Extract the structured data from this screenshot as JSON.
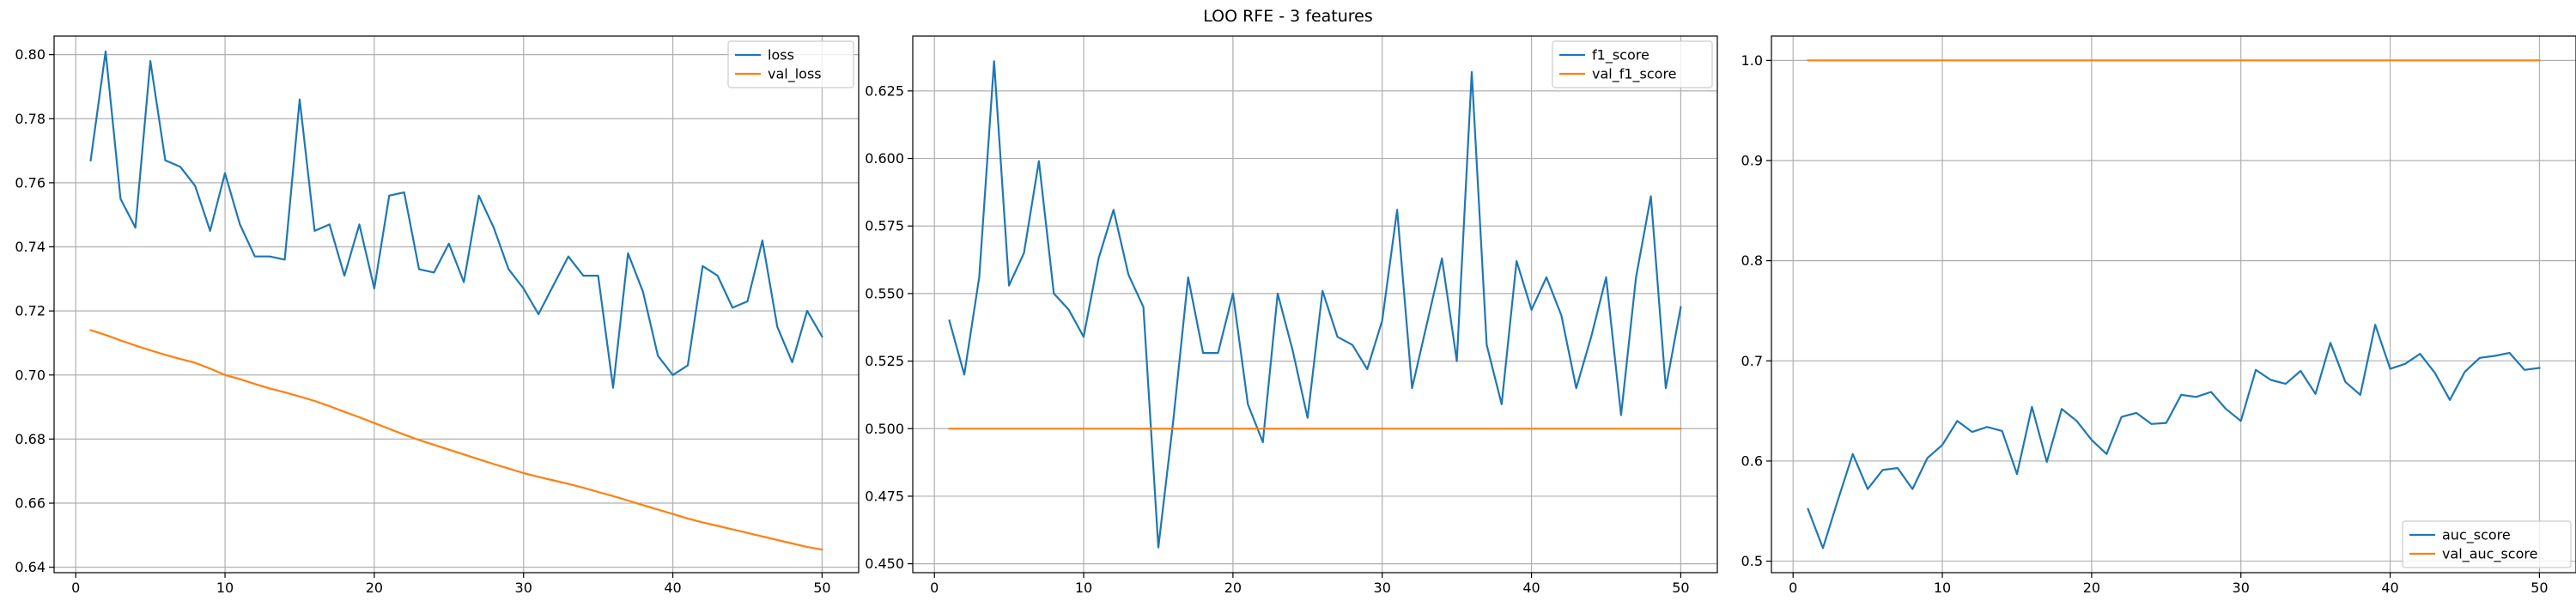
{
  "figure": {
    "title": "LOO RFE - 3 features"
  },
  "colors": {
    "series_1": "#1f77b4",
    "series_2": "#ff7f0e",
    "grid": "#b0b0b0"
  },
  "chart_data": [
    {
      "type": "line",
      "title": "",
      "xlabel": "",
      "ylabel": "",
      "xlim": [
        -1.45,
        52.45
      ],
      "ylim": [
        0.6383,
        0.8058
      ],
      "xticks": [
        0,
        10,
        20,
        30,
        40,
        50
      ],
      "yticks": [
        0.64,
        0.66,
        0.68,
        0.7,
        0.72,
        0.74,
        0.76,
        0.78,
        0.8
      ],
      "ytick_labels": [
        "0.64",
        "0.66",
        "0.68",
        "0.70",
        "0.72",
        "0.74",
        "0.76",
        "0.78",
        "0.80"
      ],
      "grid": true,
      "legend_position": "upper-right",
      "x": [
        1,
        2,
        3,
        4,
        5,
        6,
        7,
        8,
        9,
        10,
        11,
        12,
        13,
        14,
        15,
        16,
        17,
        18,
        19,
        20,
        21,
        22,
        23,
        24,
        25,
        26,
        27,
        28,
        29,
        30,
        31,
        32,
        33,
        34,
        35,
        36,
        37,
        38,
        39,
        40,
        41,
        42,
        43,
        44,
        45,
        46,
        47,
        48,
        49,
        50
      ],
      "series": [
        {
          "name": "loss",
          "values": [
            0.767,
            0.801,
            0.755,
            0.746,
            0.798,
            0.767,
            0.765,
            0.759,
            0.745,
            0.763,
            0.747,
            0.737,
            0.737,
            0.736,
            0.786,
            0.745,
            0.747,
            0.731,
            0.747,
            0.727,
            0.756,
            0.757,
            0.733,
            0.732,
            0.741,
            0.729,
            0.756,
            0.746,
            0.733,
            0.727,
            0.719,
            0.728,
            0.737,
            0.731,
            0.731,
            0.696,
            0.738,
            0.726,
            0.706,
            0.7,
            0.703,
            0.734,
            0.731,
            0.721,
            0.723,
            0.742,
            0.715,
            0.704,
            0.72,
            0.712
          ]
        },
        {
          "name": "val_loss",
          "values": [
            0.714,
            0.7125,
            0.7108,
            0.7092,
            0.7077,
            0.7063,
            0.705,
            0.7038,
            0.702,
            0.7,
            0.6987,
            0.6972,
            0.6958,
            0.6946,
            0.6933,
            0.6919,
            0.6903,
            0.6885,
            0.6868,
            0.685,
            0.6832,
            0.6814,
            0.6797,
            0.6782,
            0.6767,
            0.6752,
            0.6737,
            0.6722,
            0.6708,
            0.6694,
            0.6682,
            0.6671,
            0.666,
            0.6648,
            0.6635,
            0.6622,
            0.6608,
            0.6594,
            0.658,
            0.6566,
            0.6552,
            0.654,
            0.6529,
            0.6518,
            0.6507,
            0.6496,
            0.6485,
            0.6474,
            0.6463,
            0.6455
          ]
        }
      ]
    },
    {
      "type": "line",
      "title": "",
      "xlabel": "",
      "ylabel": "",
      "xlim": [
        -1.45,
        52.45
      ],
      "ylim": [
        0.4467,
        0.6453
      ],
      "xticks": [
        0,
        10,
        20,
        30,
        40,
        50
      ],
      "yticks": [
        0.45,
        0.475,
        0.5,
        0.525,
        0.55,
        0.575,
        0.6,
        0.625
      ],
      "ytick_labels": [
        "0.450",
        "0.475",
        "0.500",
        "0.525",
        "0.550",
        "0.575",
        "0.600",
        "0.625"
      ],
      "grid": true,
      "legend_position": "upper-right",
      "x": [
        1,
        2,
        3,
        4,
        5,
        6,
        7,
        8,
        9,
        10,
        11,
        12,
        13,
        14,
        15,
        16,
        17,
        18,
        19,
        20,
        21,
        22,
        23,
        24,
        25,
        26,
        27,
        28,
        29,
        30,
        31,
        32,
        33,
        34,
        35,
        36,
        37,
        38,
        39,
        40,
        41,
        42,
        43,
        44,
        45,
        46,
        47,
        48,
        49,
        50
      ],
      "series": [
        {
          "name": "f1_score",
          "values": [
            0.54,
            0.52,
            0.556,
            0.636,
            0.553,
            0.565,
            0.599,
            0.55,
            0.544,
            0.534,
            0.563,
            0.581,
            0.557,
            0.545,
            0.456,
            0.503,
            0.556,
            0.528,
            0.528,
            0.55,
            0.509,
            0.495,
            0.55,
            0.529,
            0.504,
            0.551,
            0.534,
            0.531,
            0.522,
            0.54,
            0.581,
            0.515,
            0.539,
            0.563,
            0.525,
            0.632,
            0.531,
            0.509,
            0.562,
            0.544,
            0.556,
            0.542,
            0.515,
            0.534,
            0.556,
            0.505,
            0.556,
            0.586,
            0.515,
            0.545
          ]
        },
        {
          "name": "val_f1_score",
          "values": [
            0.5,
            0.5,
            0.5,
            0.5,
            0.5,
            0.5,
            0.5,
            0.5,
            0.5,
            0.5,
            0.5,
            0.5,
            0.5,
            0.5,
            0.5,
            0.5,
            0.5,
            0.5,
            0.5,
            0.5,
            0.5,
            0.5,
            0.5,
            0.5,
            0.5,
            0.5,
            0.5,
            0.5,
            0.5,
            0.5,
            0.5,
            0.5,
            0.5,
            0.5,
            0.5,
            0.5,
            0.5,
            0.5,
            0.5,
            0.5,
            0.5,
            0.5,
            0.5,
            0.5,
            0.5,
            0.5,
            0.5,
            0.5,
            0.5,
            0.5
          ]
        }
      ]
    },
    {
      "type": "line",
      "title": "",
      "xlabel": "",
      "ylabel": "",
      "xlim": [
        -1.45,
        52.45
      ],
      "ylim": [
        0.4885,
        1.0243
      ],
      "xticks": [
        0,
        10,
        20,
        30,
        40,
        50
      ],
      "yticks": [
        0.5,
        0.6,
        0.7,
        0.8,
        0.9,
        1.0
      ],
      "ytick_labels": [
        "0.5",
        "0.6",
        "0.7",
        "0.8",
        "0.9",
        "1.0"
      ],
      "grid": true,
      "legend_position": "lower-right",
      "x": [
        1,
        2,
        3,
        4,
        5,
        6,
        7,
        8,
        9,
        10,
        11,
        12,
        13,
        14,
        15,
        16,
        17,
        18,
        19,
        20,
        21,
        22,
        23,
        24,
        25,
        26,
        27,
        28,
        29,
        30,
        31,
        32,
        33,
        34,
        35,
        36,
        37,
        38,
        39,
        40,
        41,
        42,
        43,
        44,
        45,
        46,
        47,
        48,
        49,
        50
      ],
      "series": [
        {
          "name": "auc_score",
          "values": [
            0.552,
            0.513,
            0.561,
            0.607,
            0.572,
            0.591,
            0.593,
            0.572,
            0.603,
            0.616,
            0.64,
            0.629,
            0.634,
            0.63,
            0.587,
            0.654,
            0.599,
            0.652,
            0.64,
            0.621,
            0.607,
            0.644,
            0.648,
            0.637,
            0.638,
            0.666,
            0.664,
            0.669,
            0.652,
            0.64,
            0.691,
            0.681,
            0.677,
            0.69,
            0.667,
            0.718,
            0.679,
            0.666,
            0.736,
            0.692,
            0.697,
            0.707,
            0.688,
            0.661,
            0.689,
            0.703,
            0.705,
            0.708,
            0.691,
            0.693
          ]
        },
        {
          "name": "val_auc_score",
          "values": [
            1.0,
            1.0,
            1.0,
            1.0,
            1.0,
            1.0,
            1.0,
            1.0,
            1.0,
            1.0,
            1.0,
            1.0,
            1.0,
            1.0,
            1.0,
            1.0,
            1.0,
            1.0,
            1.0,
            1.0,
            1.0,
            1.0,
            1.0,
            1.0,
            1.0,
            1.0,
            1.0,
            1.0,
            1.0,
            1.0,
            1.0,
            1.0,
            1.0,
            1.0,
            1.0,
            1.0,
            1.0,
            1.0,
            1.0,
            1.0,
            1.0,
            1.0,
            1.0,
            1.0,
            1.0,
            1.0,
            1.0,
            1.0,
            1.0,
            1.0
          ]
        }
      ]
    }
  ]
}
